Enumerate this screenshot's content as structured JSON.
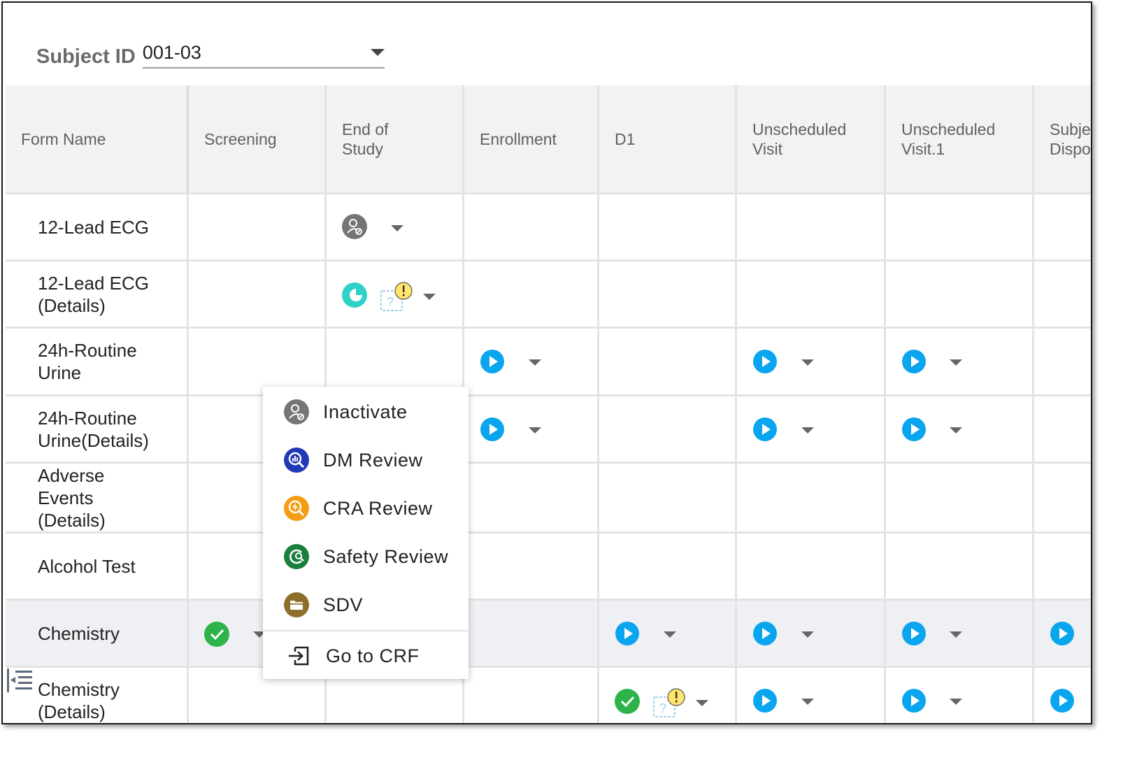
{
  "subject": {
    "label": "Subject ID",
    "value": "001-03"
  },
  "columns": [
    "Form Name",
    "Screening",
    "End of Study",
    "Enrollment",
    "D1",
    "Unscheduled Visit",
    "Unscheduled Visit.1",
    "Subject Disposition"
  ],
  "rows": [
    {
      "label": "12-Lead ECG"
    },
    {
      "label": "12-Lead ECG (Details)"
    },
    {
      "label": "24h-Routine Urine"
    },
    {
      "label": "24h-Routine Urine(Details)"
    },
    {
      "label": "Adverse Events (Details)"
    },
    {
      "label": "Alcohol Test"
    },
    {
      "label": "Chemistry"
    },
    {
      "label": "Chemistry (Details)"
    }
  ],
  "menu": {
    "items": [
      {
        "label": "Inactivate",
        "icon": "inactivate-icon",
        "color": "#757575"
      },
      {
        "label": "DM Review",
        "icon": "dm-review-icon",
        "color": "#2239b5"
      },
      {
        "label": "CRA Review",
        "icon": "cra-review-icon",
        "color": "#f59c12"
      },
      {
        "label": "Safety Review",
        "icon": "safety-review-icon",
        "color": "#1a7f3c"
      },
      {
        "label": "SDV",
        "icon": "sdv-icon",
        "color": "#8d6e2a"
      }
    ],
    "goto_label": "Go to CRF"
  },
  "colors": {
    "play": "#0aa5ef",
    "complete": "#2db34a",
    "in_progress": "#2ed3c6",
    "query": "#ffe56b"
  }
}
